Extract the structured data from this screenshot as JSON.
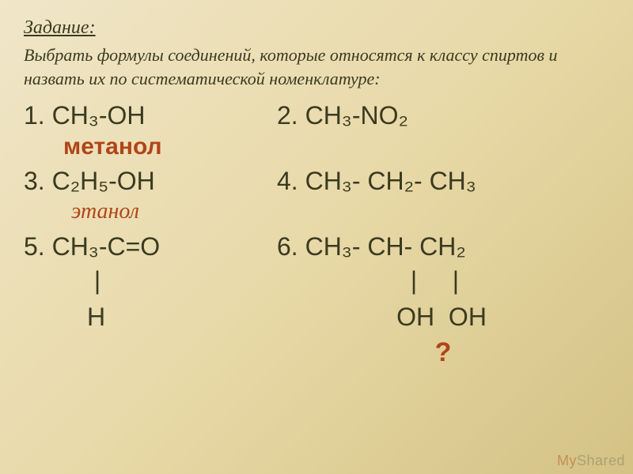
{
  "heading": "Задание:",
  "instruction": "Выбрать формулы соединений, которые относятся к классу спиртов и назвать их по систематической номенклатуре:",
  "items": {
    "f1": "1. CH₃-OH",
    "f2": "2. CH₃-NO₂",
    "label1": "метанол",
    "f3": "3. C₂H₅-OH",
    "f4": "4. CH₃- CH₂- CH₃",
    "label2": "этанол",
    "f5": "5. CH₃-C=O",
    "f6": "6. CH₃- CH- CH₂",
    "bonds1": "          |",
    "bonds2": "                   |     |",
    "atoms1": "         H",
    "atoms2": "                 OH  OH",
    "question": "?"
  },
  "watermark": {
    "my": "My",
    "shared": "Shared"
  },
  "colors": {
    "text": "#3a3a20",
    "accent": "#b04518",
    "bg_light": "#f0e6c8",
    "bg_dark": "#d4c284"
  },
  "fonts": {
    "heading_size": 24,
    "instruction_size": 22,
    "formula_size": 32,
    "label_size": 30
  }
}
